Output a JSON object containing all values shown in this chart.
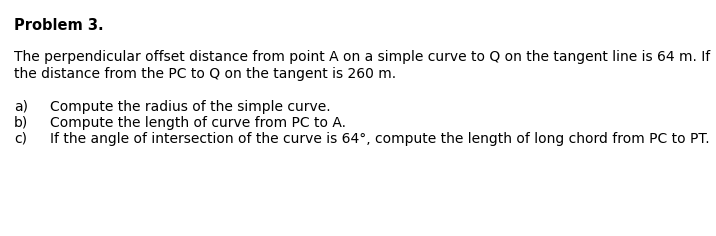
{
  "background_color": "#ffffff",
  "title": "Problem 3.",
  "title_fontsize": 10.5,
  "body_text_line1": "The perpendicular offset distance from point A on a simple curve to Q on the tangent line is 64 m. If",
  "body_text_line2": "the distance from the PC to Q on the tangent is 260 m.",
  "body_fontsize": 10.0,
  "items": [
    {
      "label": "a)",
      "text": "Compute the radius of the simple curve."
    },
    {
      "label": "b)",
      "text": "Compute the length of curve from PC to A."
    },
    {
      "label": "c)",
      "text": "If the angle of intersection of the curve is 64°, compute the length of long chord from PC to PT."
    }
  ],
  "item_fontsize": 10.0,
  "text_color": "#000000"
}
